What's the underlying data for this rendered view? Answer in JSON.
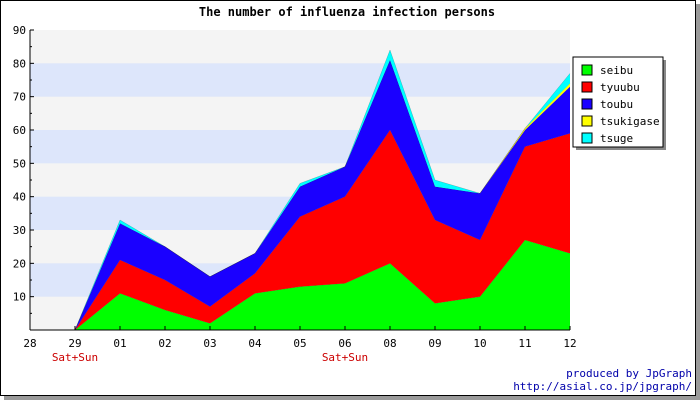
{
  "credits": {
    "line1": "produced by JpGraph",
    "line2": "http://asial.co.jp/jpgraph/"
  },
  "chart_data": {
    "type": "area",
    "stacked": true,
    "title": "The number of influenza infection persons",
    "x": [
      "28",
      "29",
      "01",
      "02",
      "03",
      "04",
      "05",
      "06",
      "08",
      "09",
      "10",
      "11",
      "12"
    ],
    "x_sublabels": {
      "29": "Sat+Sun",
      "06": "Sat+Sun"
    },
    "ylim": [
      0,
      90
    ],
    "yticks": [
      10,
      20,
      30,
      40,
      50,
      60,
      70,
      80,
      90
    ],
    "grid": true,
    "band_colors": [
      "#f4f4f4",
      "#dde6fb"
    ],
    "legend_position": "right",
    "series": [
      {
        "name": "seibu",
        "color": "#00ff00",
        "values": [
          null,
          0,
          11,
          6,
          2,
          11,
          13,
          14,
          20,
          8,
          10,
          27,
          23
        ]
      },
      {
        "name": "tyuubu",
        "color": "#ff0000",
        "values": [
          null,
          0,
          10,
          9,
          5,
          6,
          21,
          26,
          40,
          25,
          17,
          28,
          36
        ]
      },
      {
        "name": "toubu",
        "color": "#1a00ff",
        "values": [
          null,
          0,
          11,
          10,
          9,
          6,
          9,
          9,
          21,
          10,
          14,
          5,
          14
        ]
      },
      {
        "name": "tsukigase",
        "color": "#ffff00",
        "values": [
          null,
          0,
          0,
          0,
          0,
          0,
          0,
          0,
          0,
          0,
          0,
          0.5,
          1
        ]
      },
      {
        "name": "tsuge",
        "color": "#00ffff",
        "values": [
          null,
          0,
          1,
          0,
          0,
          0,
          1,
          0,
          3,
          2,
          0,
          0,
          3
        ]
      }
    ]
  }
}
